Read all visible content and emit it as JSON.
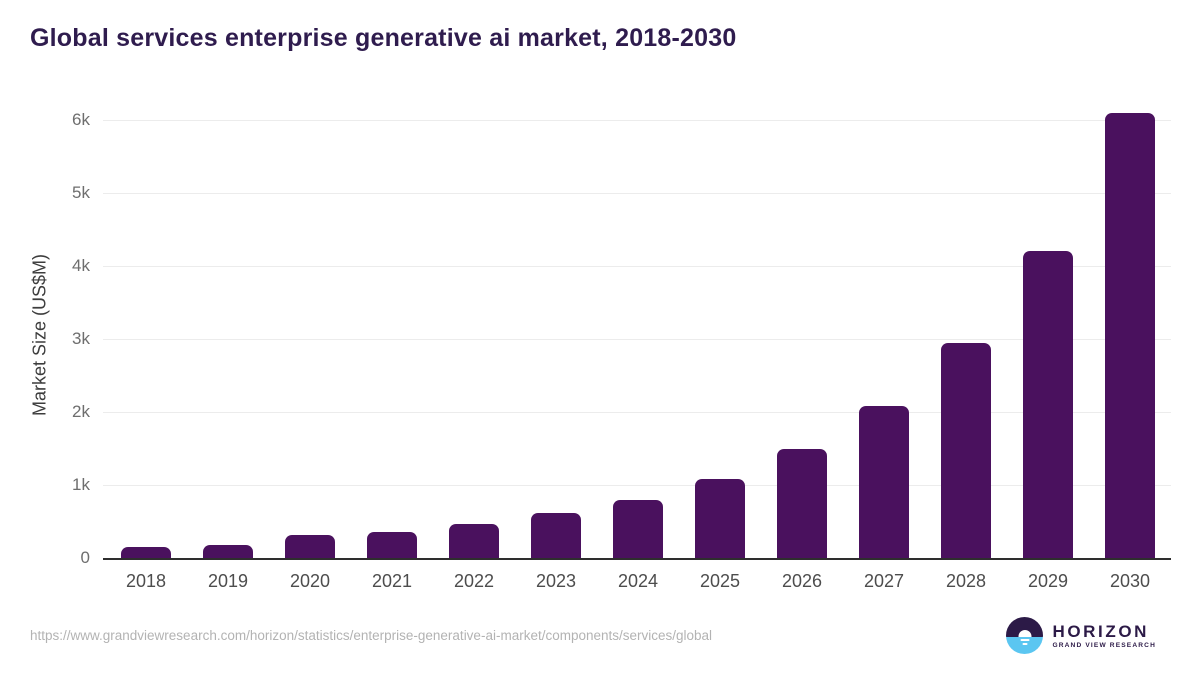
{
  "header": {
    "title": "Global services enterprise generative ai market, 2018-2030"
  },
  "chart_data": {
    "type": "bar",
    "title": "Global services enterprise generative ai market, 2018-2030",
    "categories": [
      "2018",
      "2019",
      "2020",
      "2021",
      "2022",
      "2023",
      "2024",
      "2025",
      "2026",
      "2027",
      "2028",
      "2029",
      "2030"
    ],
    "values": [
      155,
      180,
      320,
      355,
      465,
      615,
      800,
      1080,
      1500,
      2080,
      2940,
      4200,
      6100
    ],
    "xlabel": "",
    "ylabel": "Market Size (US$M)",
    "ylim": [
      0,
      6200
    ],
    "y_ticks": [
      {
        "label": "0",
        "value": 0
      },
      {
        "label": "1k",
        "value": 1000
      },
      {
        "label": "2k",
        "value": 2000
      },
      {
        "label": "3k",
        "value": 3000
      },
      {
        "label": "4k",
        "value": 4000
      },
      {
        "label": "5k",
        "value": 5000
      },
      {
        "label": "6k",
        "value": 6000
      }
    ],
    "grid": "horizontal",
    "legend": "none",
    "colors": {
      "bar": "#4a115e",
      "title": "#2f1c4e",
      "gridline": "#ececec",
      "axis_line": "#2e2e2e",
      "y_tick_label": "#6e6e6e",
      "x_tick_label": "#4d4d4d",
      "y_axis_title": "#3d3d3d"
    }
  },
  "footer": {
    "source_url": "https://www.grandviewresearch.com/horizon/statistics/enterprise-generative-ai-market/components/services/global",
    "source_url_color": "#b3b3b3",
    "logo": {
      "title": "HORIZON",
      "subtitle": "GRAND VIEW RESEARCH",
      "dark_color": "#2c1a47",
      "blue_color": "#5bc6f1"
    }
  }
}
